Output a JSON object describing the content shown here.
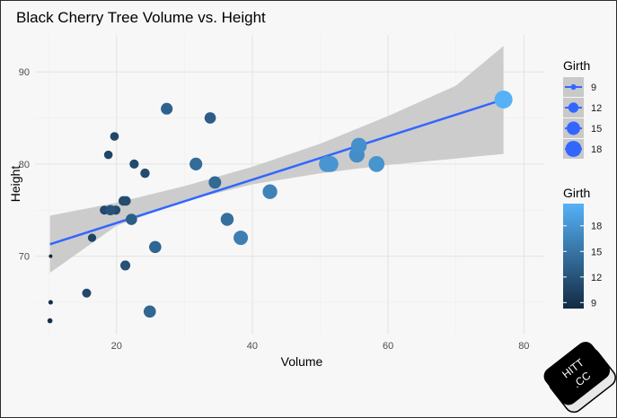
{
  "chart_data": {
    "type": "scatter",
    "title": "Black Cherry Tree Volume vs. Height",
    "xlabel": "Volume",
    "ylabel": "Height",
    "xlim": [
      8,
      83
    ],
    "ylim": [
      61.5,
      94
    ],
    "x_ticks": [
      20,
      40,
      60,
      80
    ],
    "y_ticks": [
      70,
      80,
      90
    ],
    "points": [
      {
        "x": 10.3,
        "y": 70,
        "girth": 8.3
      },
      {
        "x": 10.3,
        "y": 65,
        "girth": 8.6
      },
      {
        "x": 10.2,
        "y": 63,
        "girth": 8.8
      },
      {
        "x": 16.4,
        "y": 72,
        "girth": 10.5
      },
      {
        "x": 18.8,
        "y": 81,
        "girth": 10.7
      },
      {
        "x": 19.7,
        "y": 83,
        "girth": 10.8
      },
      {
        "x": 15.6,
        "y": 66,
        "girth": 11.0
      },
      {
        "x": 18.2,
        "y": 75,
        "girth": 11.0
      },
      {
        "x": 22.6,
        "y": 80,
        "girth": 11.1
      },
      {
        "x": 19.9,
        "y": 75,
        "girth": 11.2
      },
      {
        "x": 24.2,
        "y": 79,
        "girth": 11.3
      },
      {
        "x": 21.0,
        "y": 76,
        "girth": 11.4
      },
      {
        "x": 21.4,
        "y": 76,
        "girth": 11.4
      },
      {
        "x": 21.3,
        "y": 69,
        "girth": 11.7
      },
      {
        "x": 19.1,
        "y": 75,
        "girth": 12.0
      },
      {
        "x": 22.2,
        "y": 74,
        "girth": 12.9
      },
      {
        "x": 33.8,
        "y": 85,
        "girth": 12.9
      },
      {
        "x": 27.4,
        "y": 86,
        "girth": 13.3
      },
      {
        "x": 25.7,
        "y": 71,
        "girth": 13.7
      },
      {
        "x": 24.9,
        "y": 64,
        "girth": 13.8
      },
      {
        "x": 34.5,
        "y": 78,
        "girth": 14.0
      },
      {
        "x": 31.7,
        "y": 80,
        "girth": 14.2
      },
      {
        "x": 36.3,
        "y": 74,
        "girth": 14.5
      },
      {
        "x": 38.3,
        "y": 72,
        "girth": 16.0
      },
      {
        "x": 42.6,
        "y": 77,
        "girth": 16.3
      },
      {
        "x": 55.4,
        "y": 81,
        "girth": 17.3
      },
      {
        "x": 55.7,
        "y": 82,
        "girth": 17.5
      },
      {
        "x": 58.3,
        "y": 80,
        "girth": 17.9
      },
      {
        "x": 51.5,
        "y": 80,
        "girth": 18.0
      },
      {
        "x": 51.0,
        "y": 80,
        "girth": 18.0
      },
      {
        "x": 77.0,
        "y": 87,
        "girth": 20.6
      }
    ],
    "trend_line": {
      "x": [
        10.2,
        77.0
      ],
      "y": [
        71.3,
        87.0
      ],
      "color": "#3366FF"
    },
    "confidence_band": {
      "x": [
        10.2,
        20,
        30,
        40,
        50,
        60,
        70,
        77.0
      ],
      "lower": [
        68.2,
        73.3,
        76.0,
        77.8,
        79.0,
        79.9,
        80.6,
        81.1
      ],
      "upper": [
        74.4,
        75.8,
        77.6,
        79.7,
        82.2,
        85.2,
        88.5,
        92.8
      ],
      "color": "#c9c9c9"
    },
    "legend_size": {
      "title": "Girth",
      "labels": [
        "9",
        "12",
        "15",
        "18"
      ],
      "values": [
        9,
        12,
        15,
        18
      ],
      "position": "right"
    },
    "legend_color": {
      "title": "Girth",
      "labels": [
        "9",
        "12",
        "15",
        "18"
      ],
      "values": [
        9,
        12,
        15,
        18
      ],
      "low_color": "#132B43",
      "high_color": "#56B1F7",
      "position": "right"
    },
    "grid": true
  },
  "watermark": {
    "text_line1": "HITT",
    "text_line2": ".CC"
  }
}
